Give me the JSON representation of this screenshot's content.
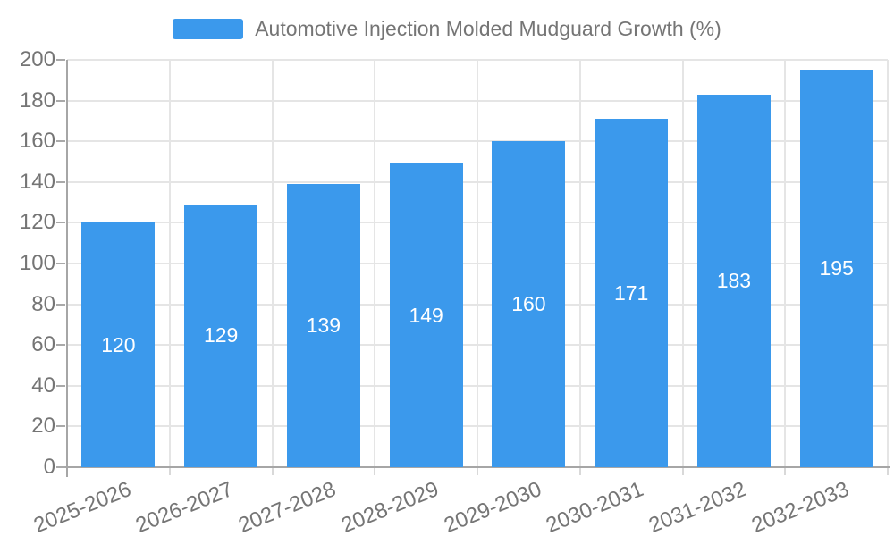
{
  "legend": {
    "label": "Automotive Injection Molded Mudguard Growth (%)",
    "swatch_color": "#3b99ec"
  },
  "chart_data": {
    "type": "bar",
    "title": "Automotive Injection Molded Mudguard Growth (%)",
    "categories": [
      "2025-2026",
      "2026-2027",
      "2027-2028",
      "2028-2029",
      "2029-2030",
      "2030-2031",
      "2031-2032",
      "2032-2033"
    ],
    "values": [
      120,
      129,
      139,
      149,
      160,
      171,
      183,
      195
    ],
    "ylim": [
      0,
      200
    ],
    "yticks": [
      0,
      20,
      40,
      60,
      80,
      100,
      120,
      140,
      160,
      180,
      200
    ],
    "xlabel": "",
    "ylabel": "",
    "grid": true,
    "legend_position": "top-center",
    "x_label_rotation_deg": -22,
    "colors": {
      "bar": "#3b99ec",
      "value_label": "#ffffff",
      "axis_text": "#757575",
      "grid_line": "#e5e5e5",
      "axis_line": "#a6a6a6",
      "minor_tick": "#d9d9d9"
    }
  }
}
